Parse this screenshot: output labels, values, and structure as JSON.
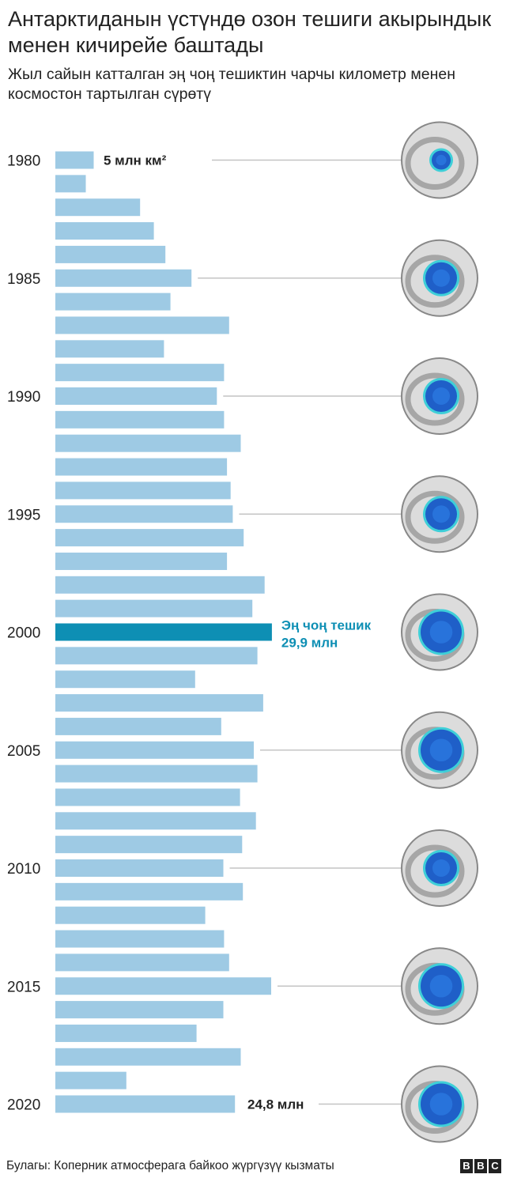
{
  "title": "Антарктиданын үстүндө озон тешиги акырындык менен кичирейе баштады",
  "subtitle": "Жыл сайын катталган эң чоң тешиктин чарчы километр менен космостон тартылган сүрөтү",
  "source": "Булагы: Коперник атмосферага байкоо жүргүзүү кызматы",
  "logo": [
    "B",
    "B",
    "C"
  ],
  "colors": {
    "bar": "#9ecae4",
    "highlight_bar": "#0e8fb4",
    "annotation_text": "#0e8fb4",
    "label_text": "#222222",
    "leader_line": "#c4c4c4",
    "globe_land": "#c9c9c9",
    "globe_ocean": "#dcdcdc",
    "hole_fill": "#1f5fc8"
  },
  "chart_data": {
    "type": "bar",
    "orientation": "horizontal",
    "unit": "млн км²",
    "categories": [
      1980,
      1981,
      1982,
      1983,
      1984,
      1985,
      1986,
      1987,
      1988,
      1989,
      1990,
      1991,
      1992,
      1993,
      1994,
      1995,
      1996,
      1997,
      1998,
      1999,
      2000,
      2001,
      2002,
      2003,
      2004,
      2005,
      2006,
      2007,
      2008,
      2009,
      2010,
      2011,
      2012,
      2013,
      2014,
      2015,
      2016,
      2017,
      2018,
      2019,
      2020
    ],
    "tick_labels": [
      "1980",
      "1985",
      "1990",
      "1995",
      "2000",
      "2005",
      "2010",
      "2015",
      "2020"
    ],
    "values": [
      5.3,
      4.2,
      11.7,
      13.6,
      15.2,
      18.8,
      15.9,
      24.0,
      15.0,
      23.3,
      22.3,
      23.3,
      25.6,
      23.7,
      24.2,
      24.5,
      26.0,
      23.7,
      28.9,
      27.2,
      29.9,
      27.9,
      19.3,
      28.7,
      22.9,
      27.4,
      27.9,
      25.5,
      27.7,
      25.8,
      23.2,
      25.9,
      20.7,
      23.3,
      24.0,
      29.8,
      23.2,
      19.5,
      25.6,
      9.8,
      24.8
    ],
    "highlight": 2000,
    "annotations": [
      {
        "year": 1980,
        "text": "5 млн км²",
        "style": "dark"
      },
      {
        "year": 2000,
        "lines": [
          "Эң чоң тешик",
          "29,9 млн"
        ],
        "style": "accent"
      },
      {
        "year": 2020,
        "text": "24,8 млн",
        "style": "dark"
      }
    ],
    "globes": [
      {
        "year": 1980,
        "hole": "small",
        "alt": "globe-1980"
      },
      {
        "year": 1985,
        "hole": "medium",
        "alt": "globe-1985"
      },
      {
        "year": 1990,
        "hole": "medium",
        "alt": "globe-1990"
      },
      {
        "year": 1995,
        "hole": "medium",
        "alt": "globe-1995"
      },
      {
        "year": 2000,
        "hole": "large",
        "alt": "globe-2000"
      },
      {
        "year": 2005,
        "hole": "large",
        "alt": "globe-2005"
      },
      {
        "year": 2010,
        "hole": "medium",
        "alt": "globe-2010"
      },
      {
        "year": 2015,
        "hole": "large",
        "alt": "globe-2015"
      },
      {
        "year": 2020,
        "hole": "large",
        "alt": "globe-2020"
      }
    ]
  }
}
